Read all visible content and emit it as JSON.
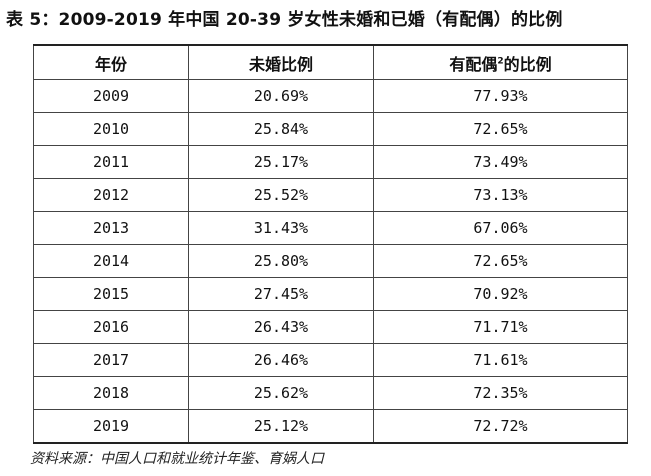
{
  "caption": "表 5：2009-2019 年中国 20-39 岁女性未婚和已婚（有配偶）的比例",
  "table": {
    "headers": {
      "year": "年份",
      "unmarried": "未婚比例",
      "married": "有配偶",
      "married_sup": "2",
      "married_suffix": "的比例"
    },
    "rows": [
      {
        "year": "2009",
        "unmarried": "20.69%",
        "married": "77.93%"
      },
      {
        "year": "2010",
        "unmarried": "25.84%",
        "married": "72.65%"
      },
      {
        "year": "2011",
        "unmarried": "25.17%",
        "married": "73.49%"
      },
      {
        "year": "2012",
        "unmarried": "25.52%",
        "married": "73.13%"
      },
      {
        "year": "2013",
        "unmarried": "31.43%",
        "married": "67.06%"
      },
      {
        "year": "2014",
        "unmarried": "25.80%",
        "married": "72.65%"
      },
      {
        "year": "2015",
        "unmarried": "27.45%",
        "married": "70.92%"
      },
      {
        "year": "2016",
        "unmarried": "26.43%",
        "married": "71.71%"
      },
      {
        "year": "2017",
        "unmarried": "26.46%",
        "married": "71.61%"
      },
      {
        "year": "2018",
        "unmarried": "25.62%",
        "married": "72.35%"
      },
      {
        "year": "2019",
        "unmarried": "25.12%",
        "married": "72.72%"
      }
    ]
  },
  "source": "资料来源：中国人口和就业统计年鉴、育娲人口"
}
